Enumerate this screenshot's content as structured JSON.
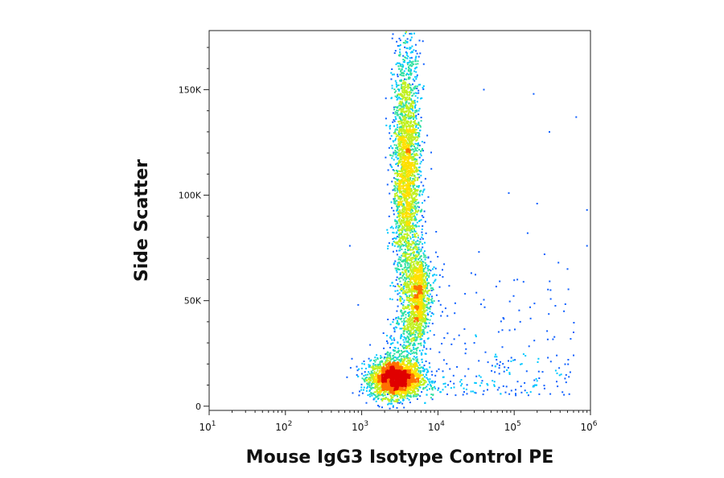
{
  "chart_data": {
    "type": "scatter",
    "subtype": "flow-cytometry-density-dotplot",
    "xlabel": "Mouse IgG3 Isotype Control PE",
    "ylabel": "Side Scatter",
    "x_scale": "log",
    "xlim": [
      10,
      1000000
    ],
    "ylim": [
      -2000,
      178000
    ],
    "x_ticks": [
      {
        "value": 10,
        "base": "10",
        "exp": "1"
      },
      {
        "value": 100,
        "base": "10",
        "exp": "2"
      },
      {
        "value": 1000,
        "base": "10",
        "exp": "3"
      },
      {
        "value": 10000,
        "base": "10",
        "exp": "4"
      },
      {
        "value": 100000,
        "base": "10",
        "exp": "5"
      },
      {
        "value": 1000000,
        "base": "10",
        "exp": "6"
      }
    ],
    "y_ticks": [
      {
        "value": 0,
        "label": "0"
      },
      {
        "value": 50000,
        "label": "50K"
      },
      {
        "value": 100000,
        "label": "100K"
      },
      {
        "value": 150000,
        "label": "150K"
      }
    ],
    "grid": false,
    "legend": "none",
    "colormap": [
      "#1010c0",
      "#1060ff",
      "#00c8ff",
      "#30e0a0",
      "#c0f020",
      "#ffe000",
      "#ff7000",
      "#e00000"
    ],
    "populations": [
      {
        "x_center": 2800,
        "x_log_spread": 0.17,
        "y_center": 13000,
        "y_spread": 4500,
        "density": "high"
      },
      {
        "x_center": 3900,
        "x_log_spread": 0.09,
        "y_center": 110000,
        "y_spread": 30000,
        "density": "high"
      },
      {
        "x_center": 5500,
        "x_log_spread": 0.07,
        "y_center": 52000,
        "y_spread": 11000,
        "density": "medium"
      }
    ],
    "outlier_points": [
      {
        "x": 40000,
        "y": 150000
      },
      {
        "x": 180000,
        "y": 148000
      },
      {
        "x": 650000,
        "y": 137000
      },
      {
        "x": 290000,
        "y": 130000
      },
      {
        "x": 85000,
        "y": 101000
      },
      {
        "x": 200000,
        "y": 96000
      },
      {
        "x": 900000,
        "y": 93000
      },
      {
        "x": 250000,
        "y": 72000
      },
      {
        "x": 380000,
        "y": 68000
      },
      {
        "x": 500000,
        "y": 65000
      },
      {
        "x": 110000,
        "y": 60000
      },
      {
        "x": 300000,
        "y": 55000
      },
      {
        "x": 450000,
        "y": 45000
      },
      {
        "x": 120000,
        "y": 40000
      },
      {
        "x": 600000,
        "y": 35000
      },
      {
        "x": 700,
        "y": 76000
      },
      {
        "x": 900,
        "y": 48000
      },
      {
        "x": 30000,
        "y": 30000
      },
      {
        "x": 70000,
        "y": 28000
      },
      {
        "x": 200000,
        "y": 12000
      },
      {
        "x": 45000,
        "y": 10000
      },
      {
        "x": 60000,
        "y": 20000
      },
      {
        "x": 900000,
        "y": 76000
      },
      {
        "x": 150000,
        "y": 82000
      }
    ]
  }
}
